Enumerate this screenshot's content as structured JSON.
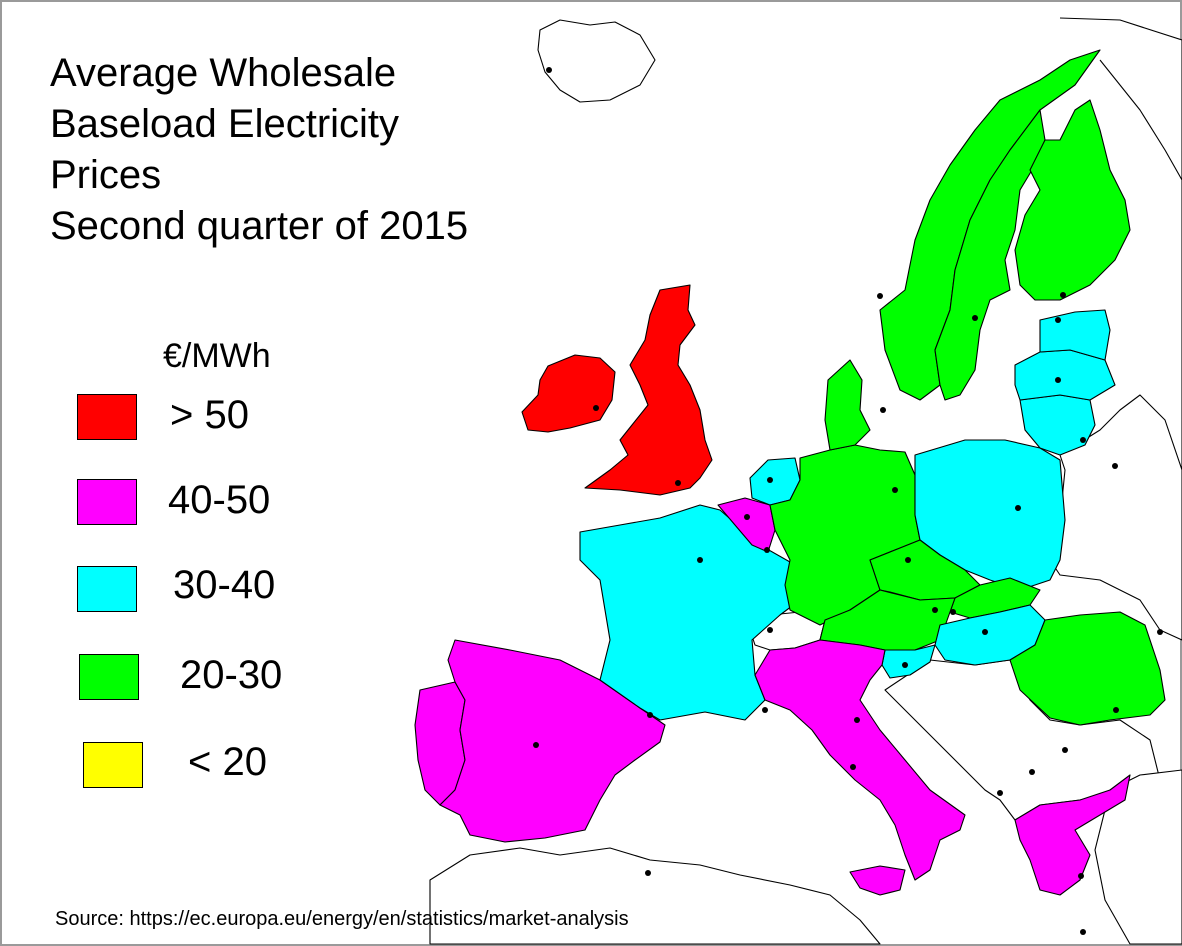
{
  "title_lines": [
    "Average Wholesale",
    "Baseload Electricity",
    "Prices",
    "Second quarter of 2015"
  ],
  "legend": {
    "unit": "€/MWh",
    "items": [
      {
        "label": "> 50",
        "color": "#ff0000"
      },
      {
        "label": "40-50",
        "color": "#ff00ff"
      },
      {
        "label": "30-40",
        "color": "#00ffff"
      },
      {
        "label": "20-30",
        "color": "#00ff00"
      },
      {
        "label": "< 20",
        "color": "#ffff00"
      }
    ]
  },
  "source": "Source: https://ec.europa.eu/energy/en/statistics/market-analysis",
  "countries": [
    {
      "id": "ireland",
      "category": "> 50"
    },
    {
      "id": "united-kingdom",
      "category": "> 50"
    },
    {
      "id": "belgium",
      "category": "40-50"
    },
    {
      "id": "spain",
      "category": "40-50"
    },
    {
      "id": "portugal",
      "category": "40-50"
    },
    {
      "id": "italy",
      "category": "40-50"
    },
    {
      "id": "greece",
      "category": "40-50"
    },
    {
      "id": "france",
      "category": "30-40"
    },
    {
      "id": "netherlands",
      "category": "30-40"
    },
    {
      "id": "poland",
      "category": "30-40"
    },
    {
      "id": "hungary",
      "category": "30-40"
    },
    {
      "id": "slovenia",
      "category": "30-40"
    },
    {
      "id": "estonia",
      "category": "30-40"
    },
    {
      "id": "latvia",
      "category": "30-40"
    },
    {
      "id": "lithuania",
      "category": "30-40"
    },
    {
      "id": "germany",
      "category": "20-30"
    },
    {
      "id": "austria",
      "category": "20-30"
    },
    {
      "id": "czechia",
      "category": "20-30"
    },
    {
      "id": "slovakia",
      "category": "20-30"
    },
    {
      "id": "romania",
      "category": "20-30"
    },
    {
      "id": "denmark",
      "category": "20-30"
    },
    {
      "id": "sweden",
      "category": "20-30"
    },
    {
      "id": "norway",
      "category": "20-30"
    },
    {
      "id": "finland",
      "category": "20-30"
    }
  ]
}
